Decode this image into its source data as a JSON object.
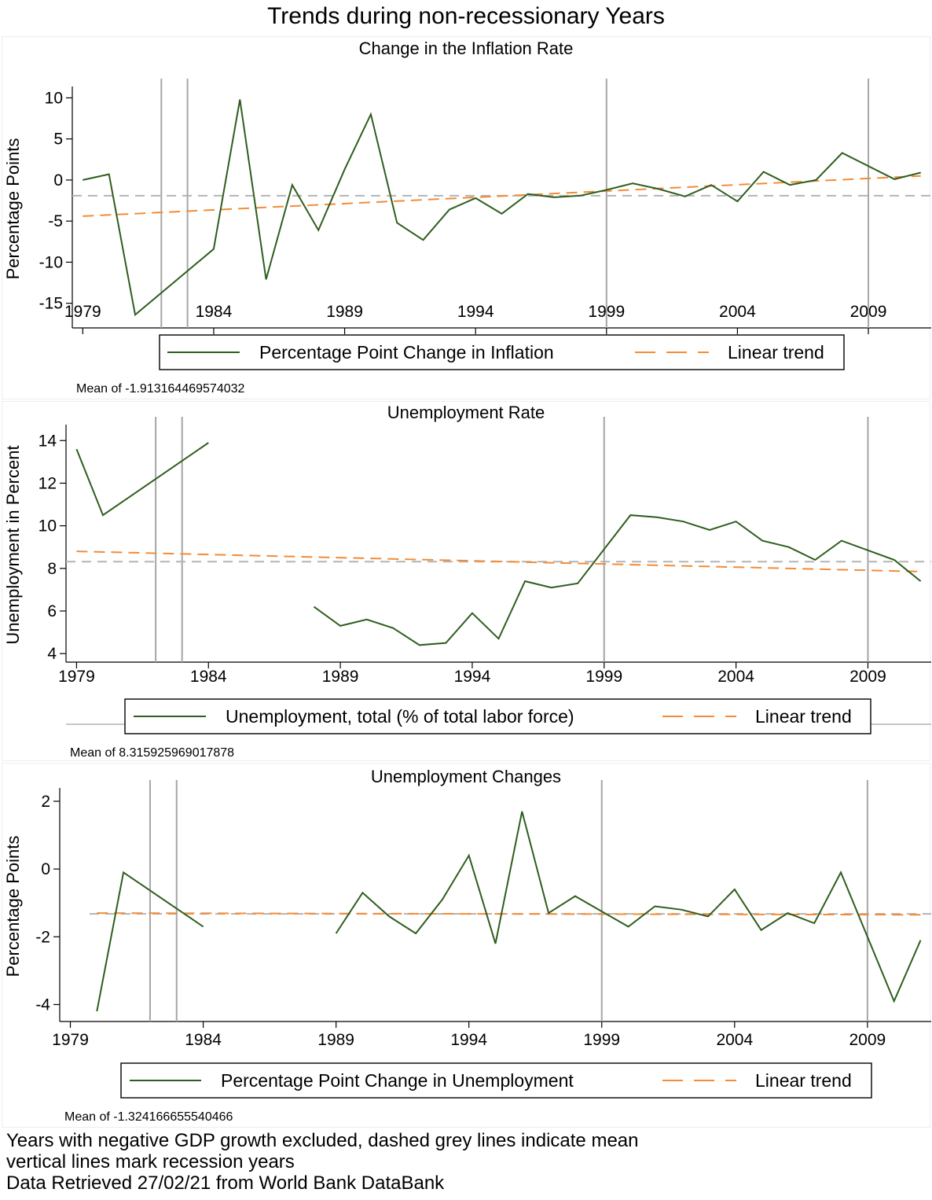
{
  "title": "Trends during non-recessionary Years",
  "colors": {
    "series": "#2e5e1e",
    "trend": "#f28c38",
    "mean": "#b4b4b4",
    "recession": "#a6a6a6"
  },
  "chart_data": [
    {
      "type": "line",
      "title": "Change in the Inflation Rate",
      "ylabel": "Percentage Points",
      "xlabel": "",
      "xlim": [
        1979,
        2011
      ],
      "ylim": [
        -18,
        11
      ],
      "x_ticks": [
        "1979",
        "1984",
        "1989",
        "1994",
        "1999",
        "2004",
        "2009"
      ],
      "y_ticks": [
        "10",
        "5",
        "0",
        "-5",
        "-10",
        "-15"
      ],
      "recession_years": [
        1982,
        1983,
        1999,
        2009
      ],
      "mean": -1.913164469574032,
      "mean_note": "Mean of -1.913164469574032",
      "trend": {
        "start": [
          1979,
          -4.4
        ],
        "end": [
          2011,
          0.5
        ]
      },
      "series": [
        {
          "name": "Percentage Point Change in Inflation",
          "points": [
            [
              1979,
              0
            ],
            [
              1980,
              0.7
            ],
            [
              1981,
              -16.4
            ],
            [
              1984,
              -8.4
            ],
            [
              1985,
              9.8
            ],
            [
              1986,
              -12.1
            ],
            [
              1987,
              -0.6
            ],
            [
              1988,
              -6.1
            ],
            [
              1989,
              1.3
            ],
            [
              1990,
              8
            ],
            [
              1991,
              -5.2
            ],
            [
              1992,
              -7.3
            ],
            [
              1993,
              -3.6
            ],
            [
              1994,
              -2.2
            ],
            [
              1995,
              -4.1
            ],
            [
              1996,
              -1.7
            ],
            [
              1997,
              -2.1
            ],
            [
              1998,
              -1.9
            ],
            [
              1999,
              -1.2
            ],
            [
              2000,
              -0.4
            ],
            [
              2001,
              -1.1
            ],
            [
              2002,
              -2
            ],
            [
              2003,
              -0.6
            ],
            [
              2004,
              -2.6
            ],
            [
              2005,
              1
            ],
            [
              2006,
              -0.6
            ],
            [
              2007,
              0
            ],
            [
              2008,
              3.3
            ],
            [
              2010,
              0.1
            ],
            [
              2011,
              0.9
            ]
          ]
        }
      ],
      "legend": [
        "Percentage Point Change in Inflation",
        "Linear trend"
      ]
    },
    {
      "type": "line",
      "title": "Unemployment Rate",
      "ylabel": "Unemployment in Percent",
      "xlabel": "",
      "xlim": [
        1979,
        2011
      ],
      "ylim": [
        3.6,
        14.6
      ],
      "x_ticks": [
        "1979",
        "1984",
        "1989",
        "1994",
        "1999",
        "2004",
        "2009"
      ],
      "y_ticks": [
        "14",
        "12",
        "10",
        "8",
        "6",
        "4"
      ],
      "recession_years": [
        1982,
        1983,
        1999,
        2009
      ],
      "mean": 8.315925969017878,
      "mean_note": "Mean of 8.315925969017878",
      "trend": {
        "start": [
          1979,
          8.8
        ],
        "end": [
          2011,
          7.85
        ]
      },
      "series": [
        {
          "name": "Unemployment, total (% of total labor force)",
          "segments": [
            [
              [
                1979,
                13.6
              ],
              [
                1980,
                10.5
              ],
              [
                1984,
                13.9
              ]
            ],
            [
              [
                1988,
                6.2
              ],
              [
                1989,
                5.3
              ],
              [
                1990,
                5.6
              ],
              [
                1991,
                5.2
              ],
              [
                1992,
                4.4
              ],
              [
                1993,
                4.5
              ],
              [
                1994,
                5.9
              ],
              [
                1995,
                4.7
              ],
              [
                1996,
                7.4
              ],
              [
                1997,
                7.1
              ],
              [
                1998,
                7.3
              ],
              [
                2000,
                10.5
              ],
              [
                2001,
                10.4
              ],
              [
                2002,
                10.2
              ],
              [
                2003,
                9.8
              ],
              [
                2004,
                10.2
              ],
              [
                2005,
                9.3
              ],
              [
                2006,
                9
              ],
              [
                2007,
                8.4
              ],
              [
                2008,
                9.3
              ],
              [
                2010,
                8.4
              ],
              [
                2011,
                7.4
              ]
            ]
          ]
        }
      ],
      "legend": [
        "Unemployment, total (% of total labor force)",
        "Linear trend"
      ]
    },
    {
      "type": "line",
      "title": "Unemployment Changes",
      "ylabel": "Percentage Points",
      "xlabel": "",
      "xlim": [
        1979,
        2011
      ],
      "ylim": [
        -4.5,
        2.3
      ],
      "x_ticks": [
        "1979",
        "1984",
        "1989",
        "1994",
        "1999",
        "2004",
        "2009"
      ],
      "y_ticks": [
        "2",
        "0",
        "-2",
        "-4"
      ],
      "recession_years": [
        1982,
        1983,
        1999,
        2009
      ],
      "mean": -1.324166655540466,
      "mean_note": "Mean of -1.324166655540466",
      "trend": {
        "start": [
          1980,
          -1.3
        ],
        "end": [
          2011,
          -1.35
        ]
      },
      "series": [
        {
          "name": "Percentage Point Change in Unemployment",
          "segments": [
            [
              [
                1980,
                -4.2
              ],
              [
                1981,
                -0.1
              ],
              [
                1984,
                -1.7
              ]
            ],
            [
              [
                1989,
                -1.9
              ],
              [
                1990,
                -0.7
              ],
              [
                1991,
                -1.4
              ],
              [
                1992,
                -1.9
              ],
              [
                1993,
                -0.9
              ],
              [
                1994,
                0.4
              ],
              [
                1995,
                -2.2
              ],
              [
                1996,
                1.7
              ],
              [
                1997,
                -1.3
              ],
              [
                1998,
                -0.8
              ],
              [
                2000,
                -1.7
              ],
              [
                2001,
                -1.1
              ],
              [
                2002,
                -1.2
              ],
              [
                2003,
                -1.4
              ],
              [
                2004,
                -0.6
              ],
              [
                2005,
                -1.8
              ],
              [
                2006,
                -1.3
              ],
              [
                2007,
                -1.6
              ],
              [
                2008,
                -0.1
              ],
              [
                2010,
                -3.9
              ],
              [
                2011,
                -2.1
              ]
            ]
          ]
        }
      ],
      "legend": [
        "Percentage Point Change in Unemployment",
        "Linear trend"
      ]
    }
  ],
  "footer": [
    "Years with negative GDP growth excluded, dashed grey lines indicate mean",
    "vertical lines mark recession years",
    "Data Retrieved 27/02/21 from World Bank DataBank"
  ]
}
